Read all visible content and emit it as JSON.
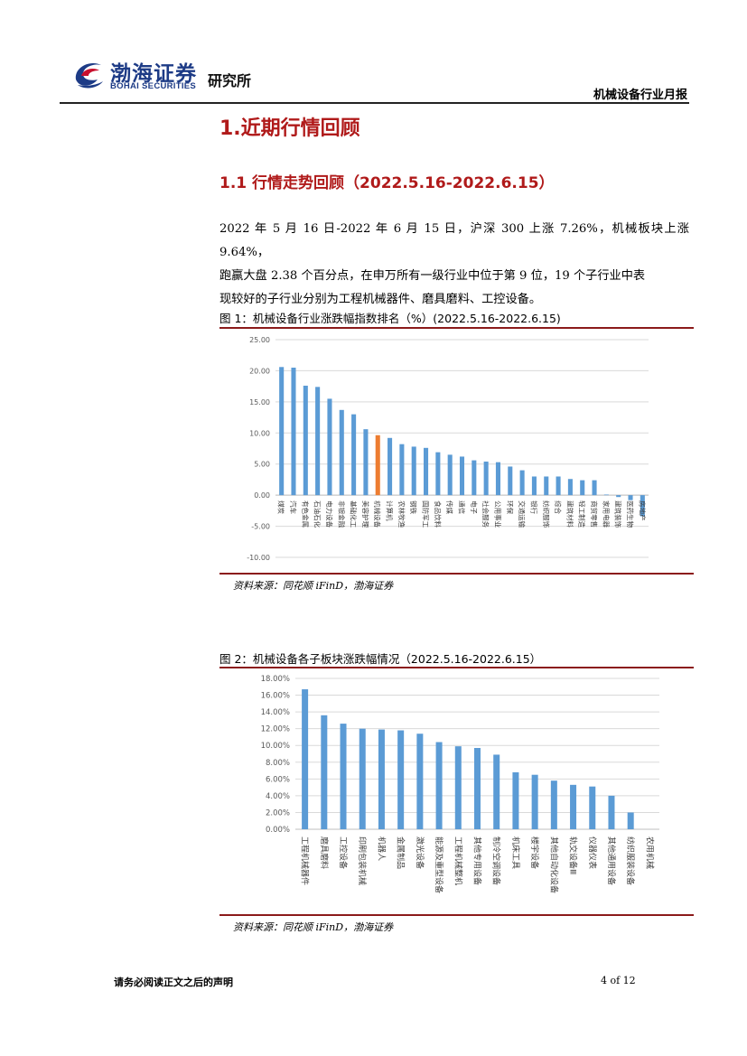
{
  "header": {
    "logo_cn": "渤海证券",
    "logo_en": "BOHAI SECURITIES",
    "institute": "研究所",
    "report_title": "机械设备行业月报"
  },
  "section": {
    "h1": "1.近期行情回顾",
    "h2": "1.1 行情走势回顾（2022.5.16-2022.6.15）",
    "paragraph_lines": [
      "2022 年 5 月 16 日-2022 年 6 月 15 日，沪深 300 上涨 7.26%，机械板块上涨 9.64%，",
      "跑赢大盘 2.38 个百分点，在申万所有一级行业中位于第 9 位，19 个子行业中表",
      "现较好的子行业分别为工程机械器件、磨具磨料、工控设备。"
    ]
  },
  "figure1": {
    "title": "图 1：机械设备行业涨跌幅指数排名（%）(2022.5.16-2022.6.15)",
    "source": "资料来源：同花顺 iFinD，渤海证券"
  },
  "figure2": {
    "title": "图 2：机械设备各子板块涨跌幅情况（2022.5.16-2022.6.15）",
    "source": "资料来源：同花顺 iFinD，渤海证券"
  },
  "footer": {
    "disclaimer": "请务必阅读正文之后的声明",
    "page": "4 of 12"
  },
  "colors": {
    "bar": "#5b9bd5",
    "highlight": "#ed7d31",
    "heading": "#b01a1a",
    "rule": "#8b1a1a",
    "logo": "#1d3b86"
  },
  "chart_data": [
    {
      "type": "bar",
      "title": "",
      "xlabel": "",
      "ylabel": "",
      "ylim": [
        -10,
        25
      ],
      "yticks": [
        "25.00",
        "20.00",
        "15.00",
        "10.00",
        "5.00",
        "0.00",
        "-5.00",
        "-10.00"
      ],
      "grid": true,
      "highlight_category": "机械设备",
      "categories": [
        "煤炭",
        "汽车",
        "有色金属",
        "石油石化",
        "电力设备",
        "非银金融",
        "基础化工",
        "美容护理",
        "机械设备",
        "计算机",
        "农林牧渔",
        "钢铁",
        "国防军工",
        "食品饮料",
        "传媒",
        "通信",
        "电子",
        "社会服务",
        "公用事业",
        "环保",
        "交通运输",
        "银行",
        "纺织服饰",
        "综合",
        "建筑材料",
        "轻工制造",
        "商贸零售",
        "家用电器",
        "建筑装饰",
        "医药生物",
        "房地产"
      ],
      "values": [
        20.6,
        20.5,
        17.6,
        17.4,
        15.5,
        13.7,
        13.0,
        10.6,
        9.64,
        9.2,
        8.2,
        7.8,
        7.6,
        6.9,
        6.5,
        6.2,
        5.6,
        5.4,
        5.3,
        4.6,
        4.0,
        3.0,
        3.0,
        3.0,
        2.6,
        2.4,
        2.4,
        0.1,
        -0.3,
        -0.8,
        -3.4
      ]
    },
    {
      "type": "bar",
      "title": "",
      "xlabel": "",
      "ylabel": "",
      "ylim": [
        0,
        18
      ],
      "yticks": [
        "18.00%",
        "16.00%",
        "14.00%",
        "12.00%",
        "10.00%",
        "8.00%",
        "6.00%",
        "4.00%",
        "2.00%",
        "0.00%"
      ],
      "grid": true,
      "categories": [
        "工程机械器件",
        "磨具磨料",
        "工控设备",
        "印刷包装机械",
        "机器人",
        "金属制品",
        "激光设备",
        "能源及重型设备",
        "工程机械整机",
        "其他专用设备",
        "制冷空调设备",
        "机床工具",
        "楼宇设备",
        "其他自动化设备",
        "轨交设备Ⅲ",
        "仪器仪表",
        "其他通用设备",
        "纺织服装设备",
        "农用机械"
      ],
      "values": [
        16.7,
        13.6,
        12.6,
        12.0,
        11.9,
        11.8,
        11.4,
        10.4,
        9.9,
        9.7,
        8.9,
        6.8,
        6.5,
        5.8,
        5.3,
        5.1,
        4.0,
        2.0,
        0.0
      ]
    }
  ]
}
